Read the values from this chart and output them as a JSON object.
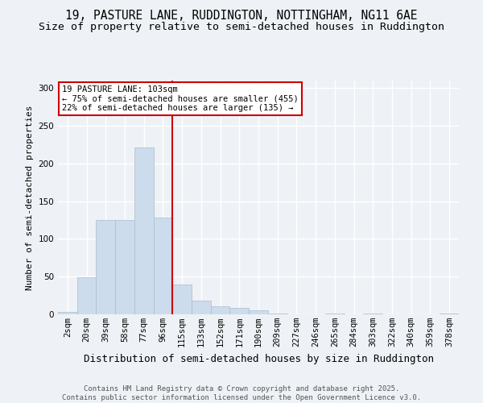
{
  "title_line1": "19, PASTURE LANE, RUDDINGTON, NOTTINGHAM, NG11 6AE",
  "title_line2": "Size of property relative to semi-detached houses in Ruddington",
  "xlabel": "Distribution of semi-detached houses by size in Ruddington",
  "ylabel": "Number of semi-detached properties",
  "footer_line1": "Contains HM Land Registry data © Crown copyright and database right 2025.",
  "footer_line2": "Contains public sector information licensed under the Open Government Licence v3.0.",
  "bin_labels": [
    "2sqm",
    "20sqm",
    "39sqm",
    "58sqm",
    "77sqm",
    "96sqm",
    "115sqm",
    "133sqm",
    "152sqm",
    "171sqm",
    "190sqm",
    "209sqm",
    "227sqm",
    "246sqm",
    "265sqm",
    "284sqm",
    "303sqm",
    "322sqm",
    "340sqm",
    "359sqm",
    "378sqm"
  ],
  "bar_values": [
    3,
    49,
    125,
    125,
    221,
    128,
    40,
    18,
    11,
    9,
    5,
    1,
    0,
    0,
    1,
    0,
    1,
    0,
    0,
    0,
    1
  ],
  "bar_color": "#ccdcec",
  "bar_edge_color": "#aabccc",
  "vline_x_index": 5.5,
  "vline_color": "#cc0000",
  "annotation_title": "19 PASTURE LANE: 103sqm",
  "annotation_line2": "← 75% of semi-detached houses are smaller (455)",
  "annotation_line3": "22% of semi-detached houses are larger (135) →",
  "annotation_box_edgecolor": "#cc0000",
  "ylim": [
    0,
    310
  ],
  "yticks": [
    0,
    50,
    100,
    150,
    200,
    250,
    300
  ],
  "background_color": "#eef2f6",
  "grid_color": "#ffffff",
  "title_fontsize": 10.5,
  "subtitle_fontsize": 9.5,
  "ylabel_fontsize": 8,
  "xlabel_fontsize": 9,
  "tick_fontsize": 7.5,
  "footer_fontsize": 6.5,
  "annotation_fontsize": 7.5
}
